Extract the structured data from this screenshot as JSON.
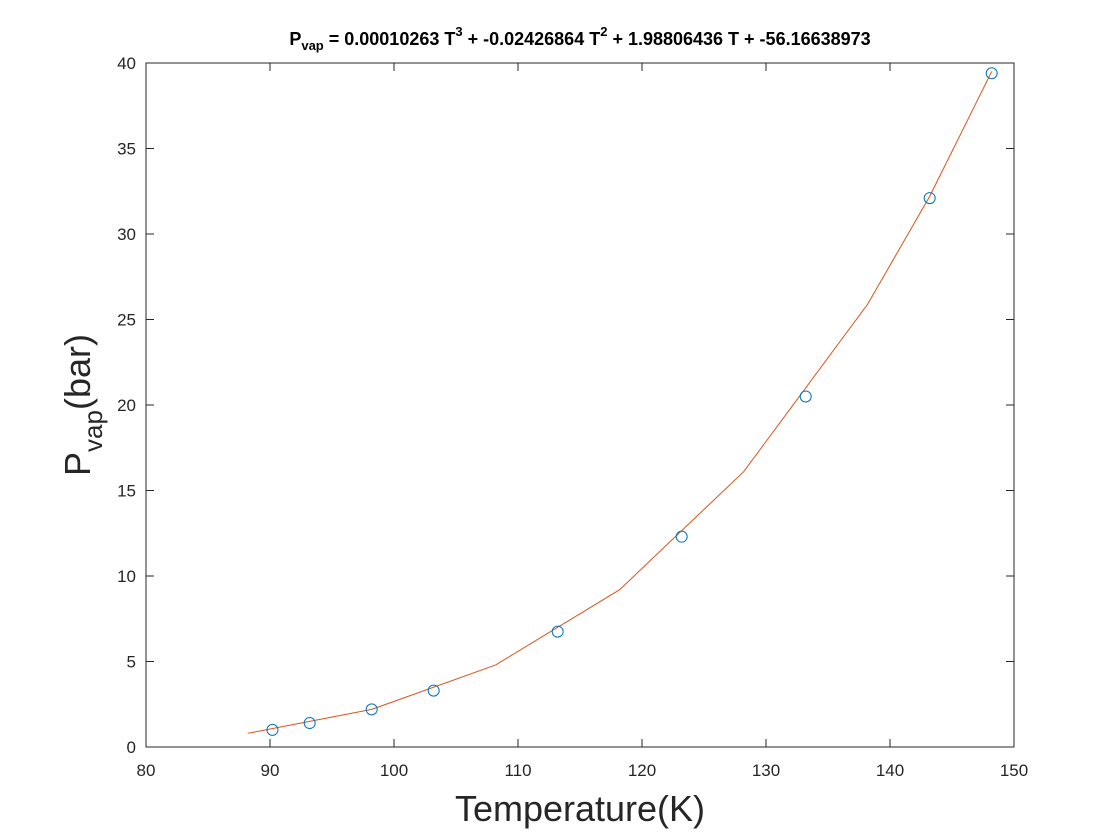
{
  "chart_data": {
    "type": "scatter",
    "title": {
      "parts": [
        {
          "text": "P",
          "sub": false,
          "sup": false
        },
        {
          "text": "vap",
          "sub": true,
          "sup": false
        },
        {
          "text": " = 0.00010263 T",
          "sub": false,
          "sup": false
        },
        {
          "text": "3",
          "sub": false,
          "sup": true
        },
        {
          "text": " + -0.02426864 T",
          "sub": false,
          "sup": false
        },
        {
          "text": "2",
          "sub": false,
          "sup": true
        },
        {
          "text": " + 1.98806436 T + -56.16638973",
          "sub": false,
          "sup": false
        }
      ]
    },
    "xlabel": "Temperature(K)",
    "ylabel": {
      "main": "P",
      "sub": "vap",
      "rest": "(bar)"
    },
    "xlim": [
      80,
      150
    ],
    "ylim": [
      0,
      40
    ],
    "xticks": [
      80,
      90,
      100,
      110,
      120,
      130,
      140,
      150
    ],
    "yticks": [
      0,
      5,
      10,
      15,
      20,
      25,
      30,
      35,
      40
    ],
    "grid": false,
    "series": [
      {
        "kind": "markers",
        "marker": "circle",
        "color": "#0072BD",
        "x": [
          90.2,
          93.2,
          98.2,
          103.2,
          113.2,
          123.2,
          133.2,
          143.2,
          148.2
        ],
        "y": [
          1.0,
          1.4,
          2.2,
          3.3,
          6.75,
          12.3,
          20.5,
          32.1,
          39.4
        ]
      },
      {
        "kind": "line",
        "color": "#D95319",
        "x": [
          88.2,
          98.2,
          108.2,
          118.2,
          128.2,
          138.2,
          143.2,
          148.2
        ],
        "y": [
          0.8,
          2.2,
          4.8,
          9.2,
          16.1,
          25.9,
          32.2,
          39.5
        ]
      }
    ]
  }
}
